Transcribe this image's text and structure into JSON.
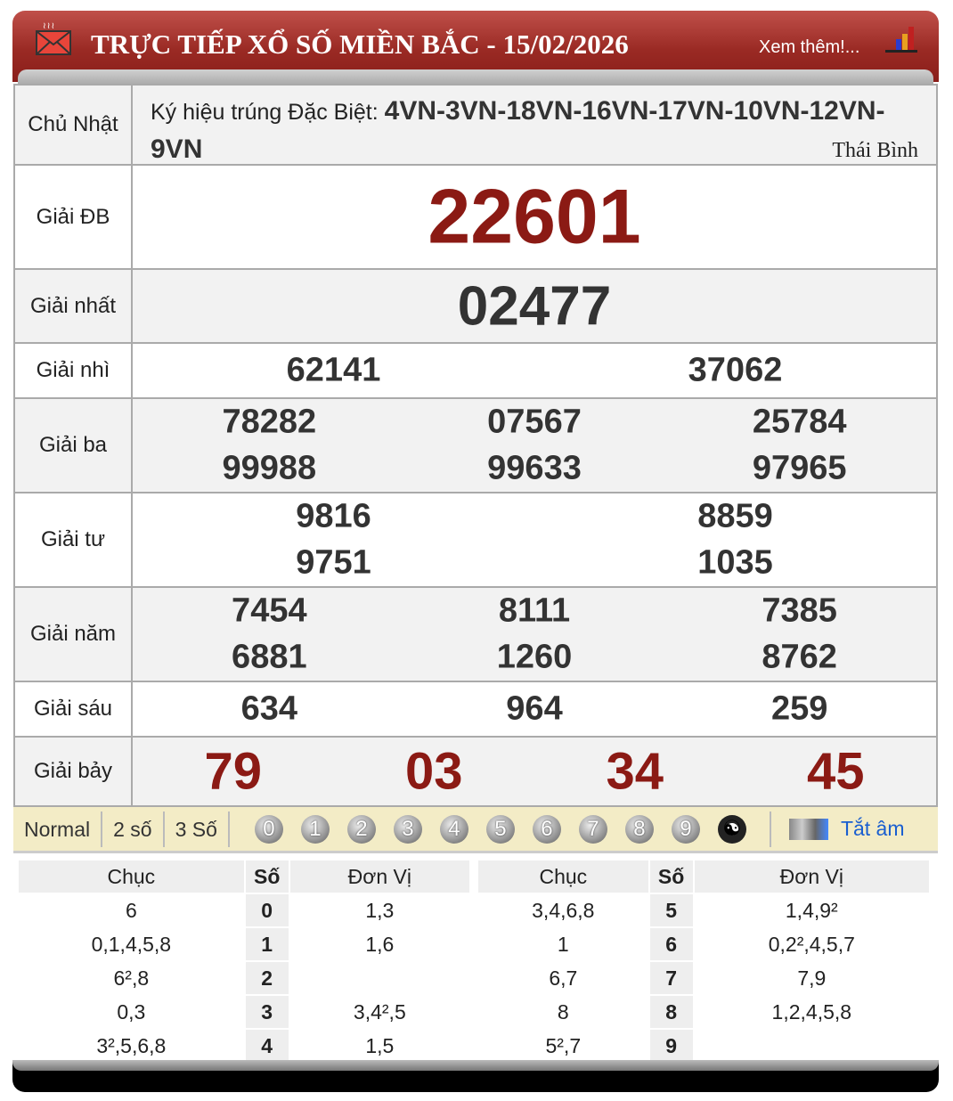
{
  "header": {
    "title": "TRỰC TIẾP XỔ SỐ MIỀN BẮC - 15/02/2026",
    "more": "Xem thêm!..."
  },
  "info": {
    "day": "Chủ Nhật",
    "code_label": "Ký hiệu trúng Đặc Biệt: ",
    "code_value": "4VN-3VN-18VN-16VN-17VN-10VN-12VN-9VN",
    "province": "Thái Bình"
  },
  "prizes": [
    {
      "label": "Giải ĐB",
      "numbers": [
        "22601"
      ]
    },
    {
      "label": "Giải nhất",
      "numbers": [
        "02477"
      ]
    },
    {
      "label": "Giải nhì",
      "numbers": [
        "62141",
        "37062"
      ]
    },
    {
      "label": "Giải ba",
      "numbers": [
        "78282",
        "07567",
        "25784",
        "99988",
        "99633",
        "97965"
      ]
    },
    {
      "label": "Giải tư",
      "numbers": [
        "9816",
        "8859",
        "9751",
        "1035"
      ]
    },
    {
      "label": "Giải năm",
      "numbers": [
        "7454",
        "8111",
        "7385",
        "6881",
        "1260",
        "8762"
      ]
    },
    {
      "label": "Giải sáu",
      "numbers": [
        "634",
        "964",
        "259"
      ]
    },
    {
      "label": "Giải bảy",
      "numbers": [
        "79",
        "03",
        "34",
        "45"
      ]
    }
  ],
  "colors": {
    "special": "#8b1a14",
    "normal": "#333333",
    "header": "#9a2a24",
    "link": "#1a5fd0"
  },
  "toolbar": {
    "modes": [
      "Normal",
      "2 số",
      "3 Số"
    ],
    "digits": [
      "0",
      "1",
      "2",
      "3",
      "4",
      "5",
      "6",
      "7",
      "8",
      "9"
    ],
    "mute": "Tắt âm"
  },
  "loto": {
    "headers": [
      "Chục",
      "Số",
      "Đơn Vị"
    ],
    "left": [
      [
        "6",
        "0",
        "1,3"
      ],
      [
        "0,1,4,5,8",
        "1",
        "1,6"
      ],
      [
        "6²,8",
        "2",
        ""
      ],
      [
        "0,3",
        "3",
        "3,4²,5"
      ],
      [
        "3²,5,6,8",
        "4",
        "1,5"
      ]
    ],
    "right": [
      [
        "3,4,6,8",
        "5",
        "1,4,9²"
      ],
      [
        "1",
        "6",
        "0,2²,4,5,7"
      ],
      [
        "6,7",
        "7",
        "7,9"
      ],
      [
        "8",
        "8",
        "1,2,4,5,8"
      ],
      [
        "5²,7",
        "9",
        ""
      ]
    ]
  }
}
